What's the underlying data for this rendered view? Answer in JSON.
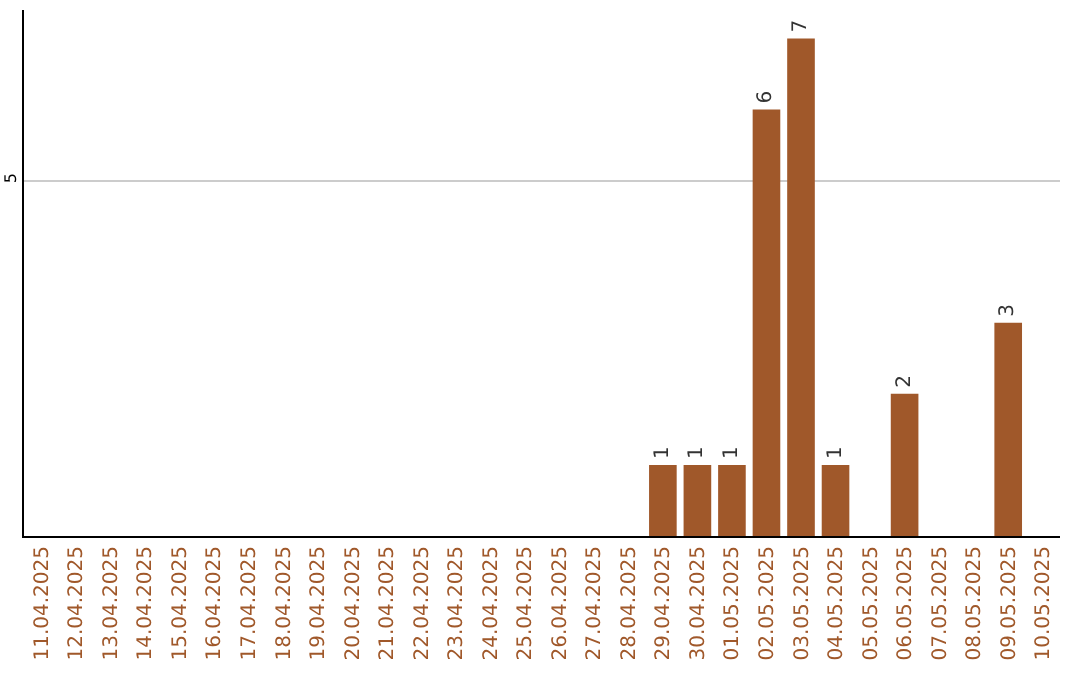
{
  "chart_data": {
    "type": "bar",
    "categories": [
      "11.04.2025",
      "12.04.2025",
      "13.04.2025",
      "14.04.2025",
      "15.04.2025",
      "16.04.2025",
      "17.04.2025",
      "18.04.2025",
      "19.04.2025",
      "20.04.2025",
      "21.04.2025",
      "22.04.2025",
      "23.04.2025",
      "24.04.2025",
      "25.04.2025",
      "26.04.2025",
      "27.04.2025",
      "28.04.2025",
      "29.04.2025",
      "30.04.2025",
      "01.05.2025",
      "02.05.2025",
      "03.05.2025",
      "04.05.2025",
      "05.05.2025",
      "06.05.2025",
      "07.05.2025",
      "08.05.2025",
      "09.05.2025",
      "10.05.2025"
    ],
    "values": [
      null,
      null,
      null,
      null,
      null,
      null,
      null,
      null,
      null,
      null,
      null,
      null,
      null,
      null,
      null,
      null,
      null,
      null,
      1,
      1,
      1,
      6,
      7,
      1,
      null,
      2,
      null,
      null,
      3,
      null
    ],
    "data_labels": true,
    "color": "#a0582a",
    "ylim": [
      0,
      7.4
    ],
    "yticks": [
      5
    ],
    "grid": "y"
  }
}
